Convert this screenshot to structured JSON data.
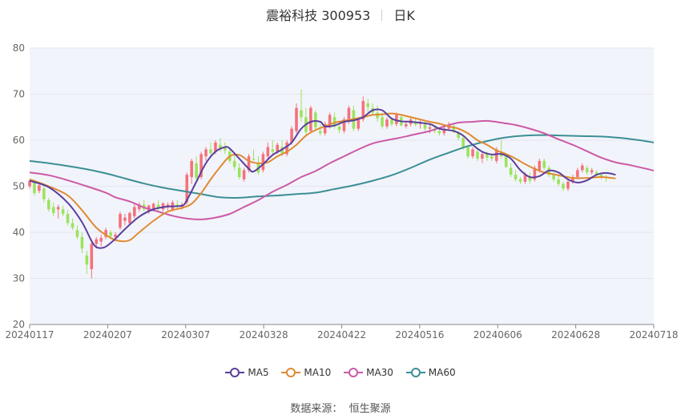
{
  "header": {
    "stock": "震裕科技 300953",
    "period": "日K"
  },
  "source": {
    "label": "数据来源：",
    "name": "恒生聚源"
  },
  "colors": {
    "up": "#f4717a",
    "down": "#9be35c",
    "ma5": "#5b3f9b",
    "ma10": "#e08a32",
    "ma30": "#cc5aa6",
    "ma60": "#3b8f95",
    "plot_bg": "#f2f4fb",
    "grid": "#e3e6ef"
  },
  "chart_data": {
    "type": "candlestick",
    "ylim": [
      20,
      80
    ],
    "yticks": [
      20,
      30,
      40,
      50,
      60,
      70,
      80
    ],
    "xticks": [
      "20240117",
      "20240207",
      "20240307",
      "20240328",
      "20240422",
      "20240516",
      "20240606",
      "20240628",
      "20240718"
    ],
    "legend": [
      "MA5",
      "MA10",
      "MA30",
      "MA60"
    ],
    "legend_position": "bottom",
    "grid": true,
    "ohlc": [
      [
        50,
        51.5,
        49.5,
        51.2
      ],
      [
        51,
        51.5,
        48,
        48.5
      ],
      [
        49,
        50.5,
        48.5,
        50.2
      ],
      [
        49.5,
        50,
        46.5,
        47.2
      ],
      [
        47,
        47.5,
        44.5,
        45
      ],
      [
        45.5,
        46.5,
        43.5,
        44.2
      ],
      [
        45,
        46,
        43,
        45.5
      ],
      [
        45,
        45.8,
        43.5,
        44
      ],
      [
        44,
        44.8,
        41.5,
        42
      ],
      [
        42,
        43,
        40.5,
        41
      ],
      [
        40.5,
        41.5,
        38.5,
        39
      ],
      [
        39,
        40,
        35.5,
        36.5
      ],
      [
        35,
        36,
        31,
        33
      ],
      [
        32,
        38.5,
        30,
        37.5
      ],
      [
        37.5,
        39,
        36.5,
        38.5
      ],
      [
        38,
        39.5,
        37,
        38.8
      ],
      [
        39,
        41,
        38.5,
        40.5
      ],
      [
        40,
        40.5,
        38.5,
        39.2
      ],
      [
        39,
        40,
        38,
        39.5
      ],
      [
        41,
        44.5,
        40.5,
        44
      ],
      [
        42.5,
        44,
        41.5,
        43.2
      ],
      [
        42,
        44.5,
        41.5,
        44.2
      ],
      [
        43.5,
        46,
        43,
        45.5
      ],
      [
        45,
        46.5,
        44.5,
        46
      ],
      [
        46,
        47,
        44.5,
        45
      ],
      [
        44.5,
        46,
        44,
        45.8
      ],
      [
        45,
        46.5,
        44.5,
        46.2
      ],
      [
        46,
        47,
        44.5,
        45.2
      ],
      [
        45,
        46.5,
        44.5,
        46.3
      ],
      [
        45.5,
        46.5,
        44.8,
        46
      ],
      [
        45,
        47,
        44.5,
        46.5
      ],
      [
        46,
        47,
        45,
        45.5
      ],
      [
        45.5,
        46.5,
        45,
        46
      ],
      [
        46.5,
        53,
        46,
        52.5
      ],
      [
        52,
        56,
        50.5,
        55.5
      ],
      [
        55,
        56.5,
        51,
        51.8
      ],
      [
        52,
        57.5,
        51.5,
        57
      ],
      [
        56.5,
        58.5,
        55.5,
        58
      ],
      [
        58,
        59.5,
        56.5,
        57.2
      ],
      [
        57.5,
        60,
        57,
        59.5
      ],
      [
        59,
        60.5,
        57.5,
        58
      ],
      [
        58.5,
        59.5,
        57,
        57.8
      ],
      [
        57.5,
        58,
        55,
        55.5
      ],
      [
        55.5,
        57,
        53.5,
        54.2
      ],
      [
        54,
        55,
        51.5,
        52
      ],
      [
        51.5,
        54,
        51,
        53.5
      ],
      [
        53.5,
        57,
        53,
        56.5
      ],
      [
        56,
        58,
        55.5,
        55.8
      ],
      [
        55,
        56.5,
        52.5,
        53
      ],
      [
        53.5,
        57.5,
        53,
        57
      ],
      [
        56.5,
        59.5,
        56,
        58.5
      ],
      [
        58,
        60,
        57,
        57.5
      ],
      [
        57.5,
        59.5,
        57,
        59
      ],
      [
        58.5,
        60,
        56.5,
        57.2
      ],
      [
        57,
        60,
        56.5,
        59.5
      ],
      [
        59.5,
        63,
        59,
        62.5
      ],
      [
        62,
        68,
        61.5,
        67
      ],
      [
        66.5,
        71,
        64,
        65
      ],
      [
        65,
        67,
        61,
        61.8
      ],
      [
        62,
        67.5,
        61.5,
        67
      ],
      [
        66,
        66.5,
        62,
        62.8
      ],
      [
        62,
        63.5,
        61,
        61.5
      ],
      [
        61.5,
        64,
        61,
        63.5
      ],
      [
        63,
        66,
        62.5,
        65.5
      ],
      [
        65,
        66,
        62.5,
        63
      ],
      [
        63,
        64,
        61.5,
        62.2
      ],
      [
        62,
        65,
        61.5,
        64.5
      ],
      [
        64,
        67.5,
        63.5,
        67
      ],
      [
        66.5,
        67.5,
        62,
        62.5
      ],
      [
        62.5,
        65,
        62,
        64.5
      ],
      [
        64.5,
        69.5,
        64,
        68.5
      ],
      [
        68,
        69,
        66,
        67.2
      ],
      [
        67,
        68,
        65.5,
        66
      ],
      [
        66,
        67.5,
        64,
        64.8
      ],
      [
        65,
        66,
        62.5,
        63
      ],
      [
        63,
        65,
        62.5,
        64.5
      ],
      [
        64.5,
        65,
        63,
        63.5
      ],
      [
        63.5,
        66,
        63,
        65.5
      ],
      [
        65,
        65.5,
        63,
        63.2
      ],
      [
        63,
        64,
        62.5,
        63.5
      ],
      [
        63.5,
        65,
        63,
        64.5
      ],
      [
        64,
        65,
        63,
        63.4
      ],
      [
        63.5,
        64.5,
        62.5,
        63.8
      ],
      [
        63.5,
        64,
        62,
        62.5
      ],
      [
        62.5,
        63.5,
        61.5,
        62.8
      ],
      [
        62.5,
        63,
        61.5,
        62
      ],
      [
        62,
        62.5,
        61,
        61.5
      ],
      [
        61.5,
        63,
        61,
        62.5
      ],
      [
        62.5,
        64,
        62,
        63.2
      ],
      [
        63,
        63.5,
        61.5,
        61.8
      ],
      [
        61.5,
        62,
        60,
        60.5
      ],
      [
        60.5,
        61,
        58,
        58.5
      ],
      [
        58.5,
        59,
        56,
        56.5
      ],
      [
        56.5,
        58.5,
        56,
        58
      ],
      [
        57.5,
        58,
        55.5,
        56
      ],
      [
        56,
        57.5,
        55,
        57
      ],
      [
        57,
        57.5,
        55.5,
        56.2
      ],
      [
        56.5,
        57,
        55.5,
        56
      ],
      [
        55.5,
        58.5,
        55,
        58
      ],
      [
        57.5,
        60,
        56,
        56.5
      ],
      [
        56.5,
        57,
        54,
        54.2
      ],
      [
        54,
        55,
        52,
        52.5
      ],
      [
        52.5,
        53.5,
        51,
        51.5
      ],
      [
        51.5,
        52,
        50.5,
        51
      ],
      [
        51,
        53,
        50.5,
        52.5
      ],
      [
        52,
        53,
        50.5,
        51.2
      ],
      [
        51.5,
        54.5,
        51,
        54
      ],
      [
        53.5,
        56,
        53,
        55.5
      ],
      [
        55.5,
        56,
        53.5,
        54
      ],
      [
        54,
        54.5,
        52,
        52.5
      ],
      [
        52.5,
        53,
        51,
        51.5
      ],
      [
        51.5,
        52.5,
        50,
        50.5
      ],
      [
        50.5,
        51,
        49,
        49.5
      ],
      [
        49.5,
        51.5,
        49,
        51
      ],
      [
        51,
        52.5,
        50.5,
        52
      ],
      [
        52,
        54,
        51.5,
        53.5
      ],
      [
        53.5,
        55,
        53,
        54.5
      ],
      [
        54,
        54.5,
        52.5,
        53
      ],
      [
        53,
        54,
        52.5,
        53.5
      ],
      [
        53,
        53.5,
        52,
        52.5
      ],
      [
        52.5,
        53,
        51.5,
        52
      ],
      [
        52,
        52.5,
        51,
        51.8
      ]
    ],
    "ma5": [
      [
        0,
        51.2
      ],
      [
        4,
        49.8
      ],
      [
        8,
        46.4
      ],
      [
        11,
        42.2
      ],
      [
        13,
        38.1
      ],
      [
        14,
        36.8
      ],
      [
        15,
        36.6
      ],
      [
        16,
        36.9
      ],
      [
        18,
        38.6
      ],
      [
        20,
        40.7
      ],
      [
        23,
        43.4
      ],
      [
        26,
        45.0
      ],
      [
        29,
        45.6
      ],
      [
        32,
        45.8
      ],
      [
        33,
        47.0
      ],
      [
        35,
        51.0
      ],
      [
        37,
        55.0
      ],
      [
        39,
        57.5
      ],
      [
        41,
        58.5
      ],
      [
        42,
        58.2
      ],
      [
        44,
        56.0
      ],
      [
        46,
        53.8
      ],
      [
        47,
        53.2
      ],
      [
        49,
        54.8
      ],
      [
        51,
        56.8
      ],
      [
        53,
        58.0
      ],
      [
        55,
        59.5
      ],
      [
        57,
        62.5
      ],
      [
        59,
        64.0
      ],
      [
        61,
        64.0
      ],
      [
        62,
        63.0
      ],
      [
        64,
        63.2
      ],
      [
        66,
        64.0
      ],
      [
        68,
        64.3
      ],
      [
        70,
        65.0
      ],
      [
        72,
        66.5
      ],
      [
        74,
        66.5
      ],
      [
        76,
        64.7
      ],
      [
        78,
        64.1
      ],
      [
        80,
        64.0
      ],
      [
        84,
        63.5
      ],
      [
        86,
        62.5
      ],
      [
        89,
        62.0
      ],
      [
        91,
        61.0
      ],
      [
        93,
        59.0
      ],
      [
        95,
        57.5
      ],
      [
        97,
        56.9
      ],
      [
        99,
        57.0
      ],
      [
        101,
        56.0
      ],
      [
        103,
        53.5
      ],
      [
        105,
        52.0
      ],
      [
        107,
        52.2
      ],
      [
        109,
        53.4
      ],
      [
        111,
        53.0
      ],
      [
        113,
        51.5
      ],
      [
        115,
        50.8
      ],
      [
        117,
        51.3
      ],
      [
        119,
        52.5
      ],
      [
        121,
        52.9
      ],
      [
        123,
        52.5
      ]
    ],
    "ma10": [
      [
        0,
        51.5
      ],
      [
        4,
        50.0
      ],
      [
        8,
        48.0
      ],
      [
        11,
        44.8
      ],
      [
        14,
        41.0
      ],
      [
        17,
        38.8
      ],
      [
        19,
        38.1
      ],
      [
        21,
        38.3
      ],
      [
        23,
        40.0
      ],
      [
        26,
        42.5
      ],
      [
        29,
        44.5
      ],
      [
        32,
        45.3
      ],
      [
        34,
        46.2
      ],
      [
        36,
        48.5
      ],
      [
        38,
        51.5
      ],
      [
        40,
        54.2
      ],
      [
        42,
        56.5
      ],
      [
        44,
        56.8
      ],
      [
        46,
        55.5
      ],
      [
        48,
        55.0
      ],
      [
        50,
        55.2
      ],
      [
        52,
        56.5
      ],
      [
        54,
        57.5
      ],
      [
        56,
        59.0
      ],
      [
        58,
        61.0
      ],
      [
        60,
        62.2
      ],
      [
        62,
        63.0
      ],
      [
        64,
        63.8
      ],
      [
        66,
        64.2
      ],
      [
        68,
        64.6
      ],
      [
        70,
        65.0
      ],
      [
        72,
        65.5
      ],
      [
        74,
        65.6
      ],
      [
        76,
        65.8
      ],
      [
        78,
        65.5
      ],
      [
        80,
        65.0
      ],
      [
        82,
        64.5
      ],
      [
        84,
        64.0
      ],
      [
        86,
        63.6
      ],
      [
        88,
        63.0
      ],
      [
        90,
        62.5
      ],
      [
        92,
        61.5
      ],
      [
        94,
        60.0
      ],
      [
        96,
        59.0
      ],
      [
        98,
        57.8
      ],
      [
        100,
        57.0
      ],
      [
        102,
        56.0
      ],
      [
        104,
        54.8
      ],
      [
        106,
        53.8
      ],
      [
        108,
        53.0
      ],
      [
        110,
        52.6
      ],
      [
        112,
        52.2
      ],
      [
        114,
        51.8
      ],
      [
        117,
        51.8
      ],
      [
        120,
        52.0
      ],
      [
        123,
        51.7
      ]
    ],
    "ma30": [
      [
        0,
        53.0
      ],
      [
        4,
        52.4
      ],
      [
        8,
        51.3
      ],
      [
        12,
        50.0
      ],
      [
        16,
        48.6
      ],
      [
        18,
        47.6
      ],
      [
        21,
        46.7
      ],
      [
        24,
        45.4
      ],
      [
        27,
        44.5
      ],
      [
        30,
        43.6
      ],
      [
        33,
        43.0
      ],
      [
        36,
        42.8
      ],
      [
        39,
        43.2
      ],
      [
        42,
        44.0
      ],
      [
        45,
        45.5
      ],
      [
        48,
        47.0
      ],
      [
        51,
        48.8
      ],
      [
        54,
        50.3
      ],
      [
        57,
        52.0
      ],
      [
        60,
        53.3
      ],
      [
        63,
        55.0
      ],
      [
        66,
        56.5
      ],
      [
        69,
        58.0
      ],
      [
        72,
        59.3
      ],
      [
        75,
        60.0
      ],
      [
        78,
        60.6
      ],
      [
        81,
        61.3
      ],
      [
        84,
        62.0
      ],
      [
        87,
        63.0
      ],
      [
        90,
        63.8
      ],
      [
        93,
        64.0
      ],
      [
        96,
        64.2
      ],
      [
        99,
        63.8
      ],
      [
        102,
        63.3
      ],
      [
        105,
        62.5
      ],
      [
        108,
        61.5
      ],
      [
        111,
        60.2
      ],
      [
        114,
        59.0
      ],
      [
        117,
        57.6
      ],
      [
        120,
        56.2
      ],
      [
        123,
        55.2
      ],
      [
        126,
        54.6
      ],
      [
        129,
        53.9
      ],
      [
        131,
        53.4
      ]
    ],
    "ma60": [
      [
        0,
        55.5
      ],
      [
        4,
        55.0
      ],
      [
        8,
        54.4
      ],
      [
        12,
        53.7
      ],
      [
        16,
        52.8
      ],
      [
        20,
        51.7
      ],
      [
        24,
        50.6
      ],
      [
        28,
        49.7
      ],
      [
        32,
        49.0
      ],
      [
        36,
        48.3
      ],
      [
        40,
        47.6
      ],
      [
        44,
        47.5
      ],
      [
        48,
        47.8
      ],
      [
        52,
        48.0
      ],
      [
        56,
        48.3
      ],
      [
        60,
        48.6
      ],
      [
        64,
        49.4
      ],
      [
        68,
        50.2
      ],
      [
        72,
        51.2
      ],
      [
        76,
        52.4
      ],
      [
        80,
        54.0
      ],
      [
        84,
        55.8
      ],
      [
        88,
        57.3
      ],
      [
        92,
        58.7
      ],
      [
        96,
        59.8
      ],
      [
        100,
        60.6
      ],
      [
        104,
        61.0
      ],
      [
        108,
        61.1
      ],
      [
        112,
        61.0
      ],
      [
        116,
        60.9
      ],
      [
        120,
        60.8
      ],
      [
        124,
        60.5
      ],
      [
        128,
        60.0
      ],
      [
        131,
        59.5
      ]
    ]
  }
}
